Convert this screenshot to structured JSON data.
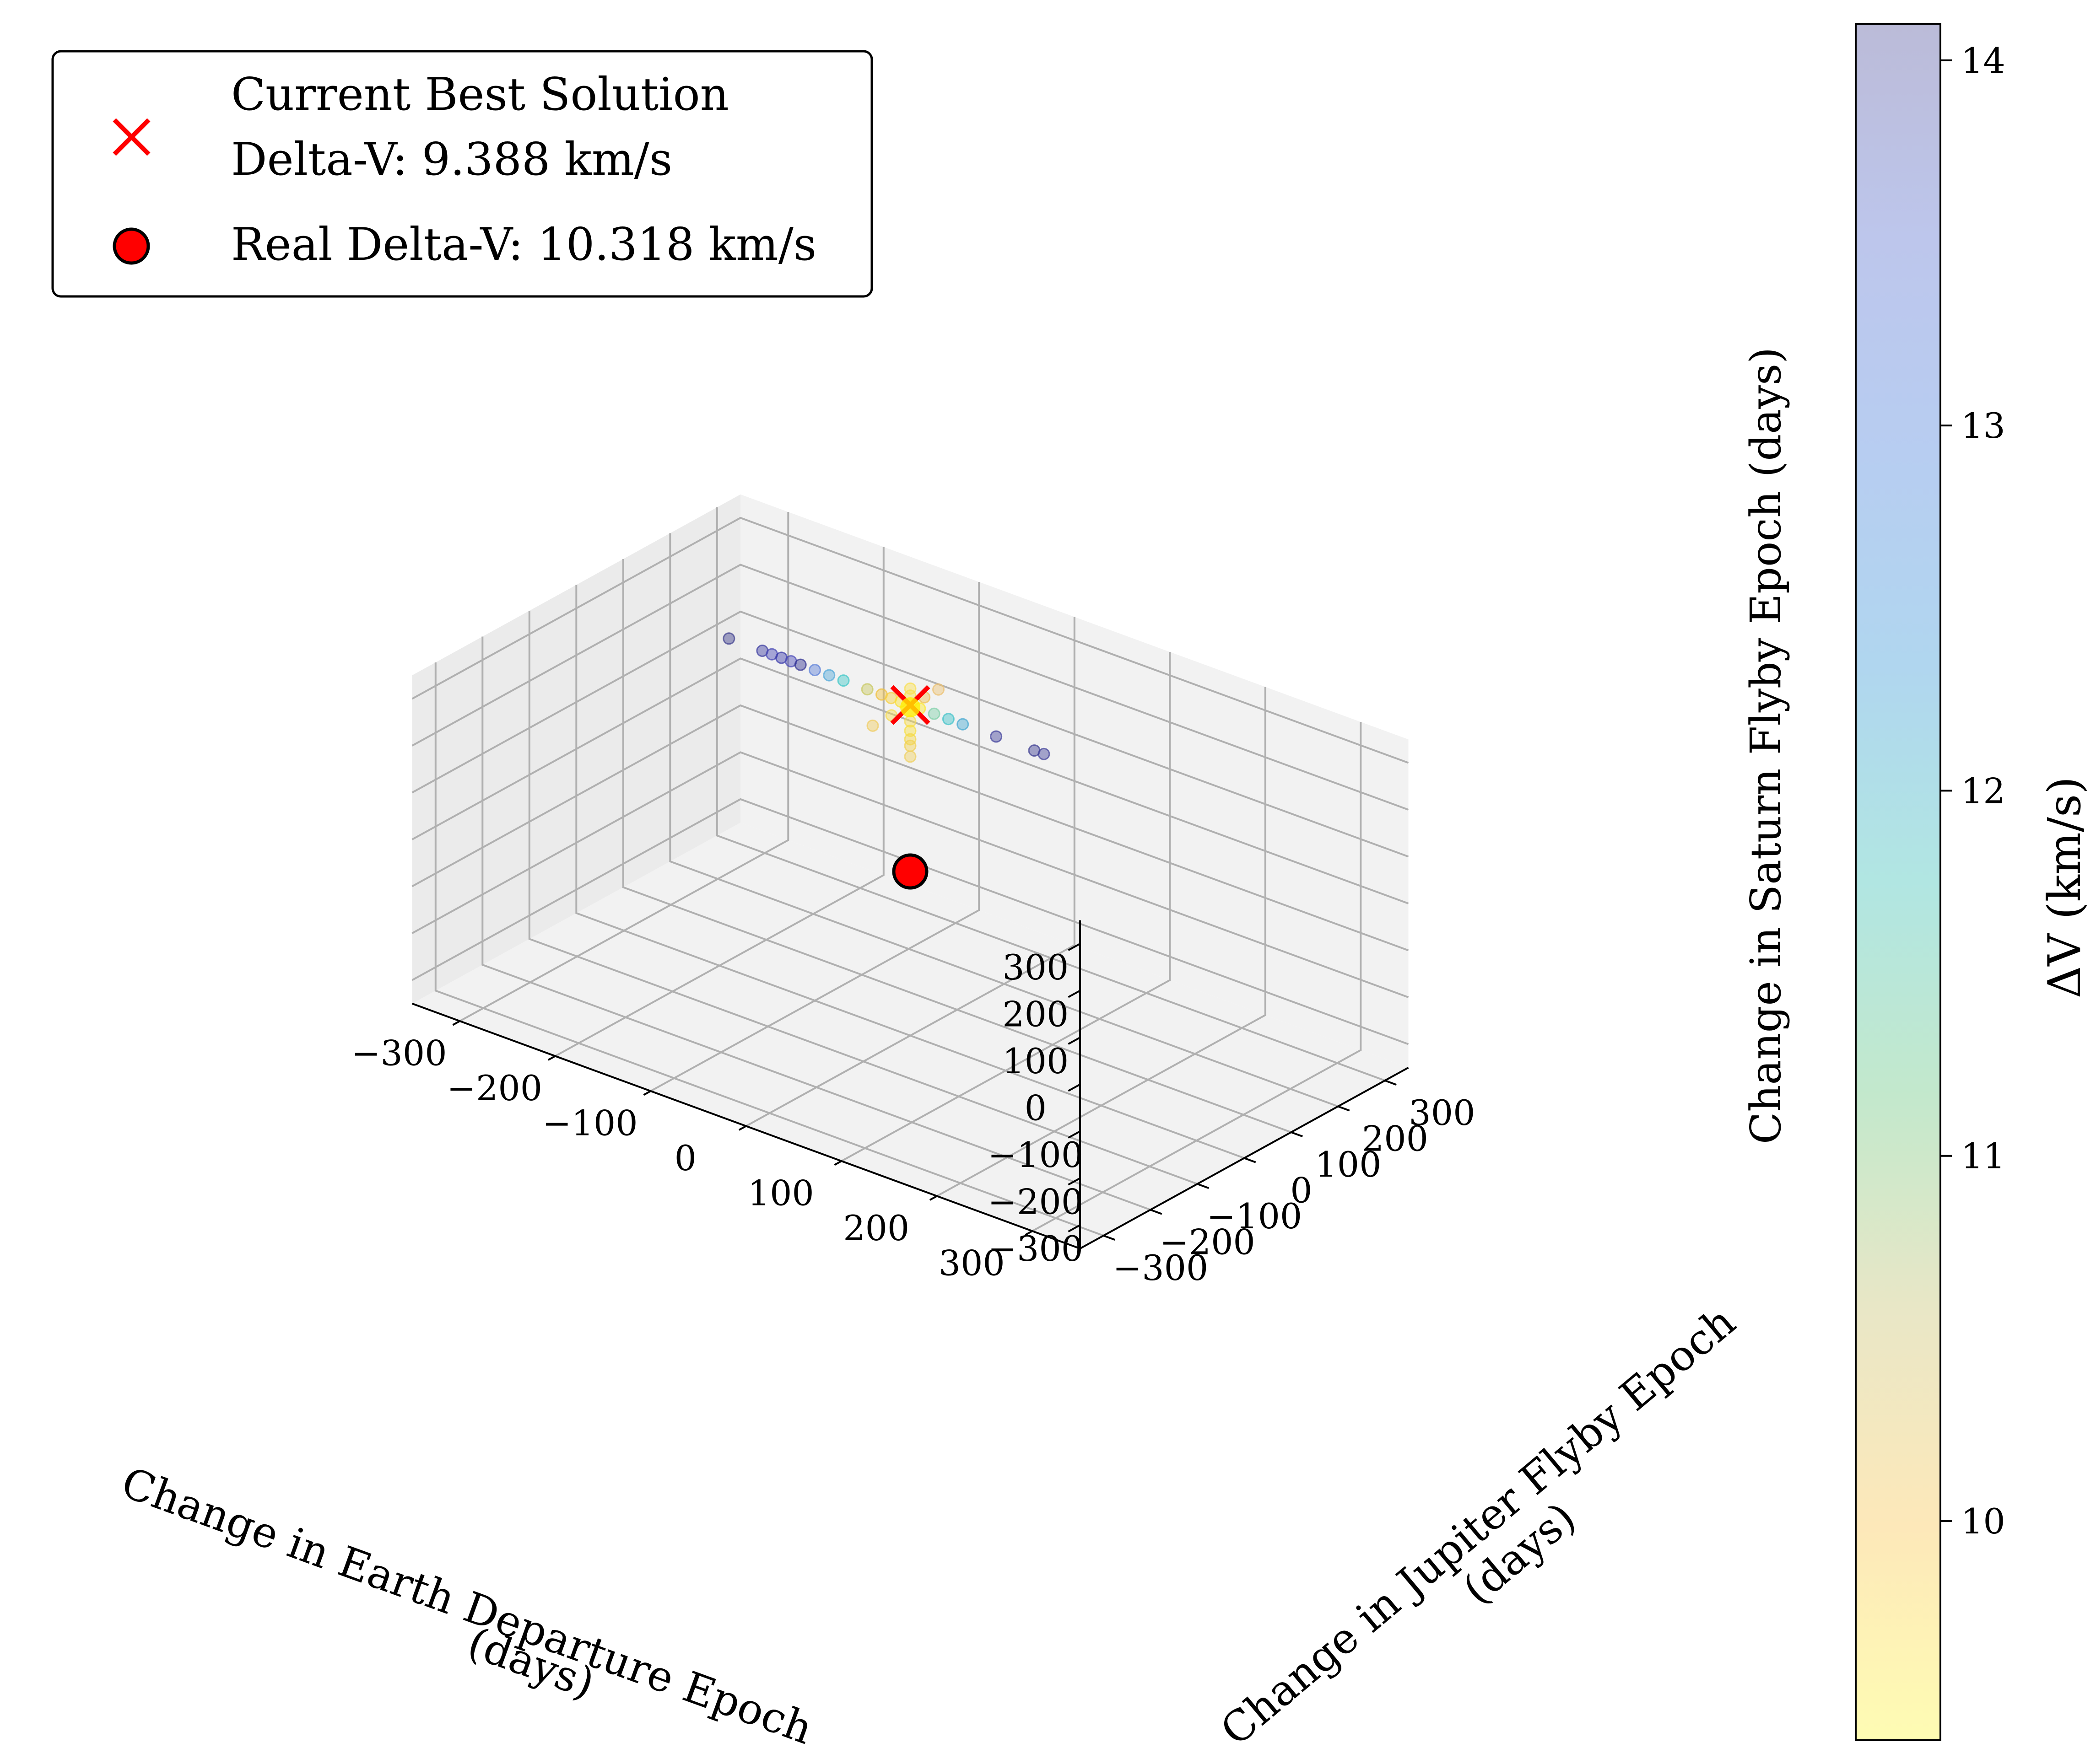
{
  "chart_data": {
    "type": "scatter",
    "projection": "3d",
    "title": "",
    "xlabel": "Change in Earth Departure Epoch\n(days)",
    "ylabel": "Change in Jupiter Flyby Epoch\n(days)",
    "zlabel": "Change in Saturn Flyby Epoch (days)",
    "xlim": [
      -350,
      350
    ],
    "ylim": [
      -350,
      350
    ],
    "zlim": [
      -350,
      350
    ],
    "xticks": [
      -300,
      -200,
      -100,
      0,
      100,
      200,
      300
    ],
    "yticks": [
      -300,
      -200,
      -100,
      0,
      100,
      200,
      300
    ],
    "zticks": [
      -300,
      -200,
      -100,
      0,
      100,
      200,
      300
    ],
    "tick_labels": [
      "−300",
      "−200",
      "−100",
      "0",
      "100",
      "200",
      "300"
    ],
    "grid": true,
    "legend_position": "top-left",
    "legend": [
      {
        "marker": "x",
        "color": "#ff0000",
        "label_lines": [
          "Current Best Solution",
          "Delta-V: 9.388 km/s"
        ]
      },
      {
        "marker": "o",
        "color": "#ff0000",
        "edge": "#000000",
        "label_lines": [
          "Real Delta-V: 10.318 km/s"
        ]
      }
    ],
    "colorbar": {
      "label": "ΔV (km/s)",
      "min": 9.4,
      "max": 14.1,
      "ticks": [
        10,
        11,
        12,
        13,
        14
      ],
      "tick_labels": [
        "10",
        "11",
        "12",
        "13",
        "14"
      ],
      "colormap_stops": [
        "#fefcb3",
        "#fde8b9",
        "#e9e7c6",
        "#c3e8cc",
        "#b1e6e2",
        "#b0d6ef",
        "#b7cdf1",
        "#bdc6ec",
        "#bbbbd8"
      ]
    },
    "best_solution": {
      "x": 0,
      "y": 0,
      "z": 355,
      "delta_v": 9.388
    },
    "real_solution": {
      "x": 0,
      "y": 0,
      "z": 0,
      "delta_v": 10.318
    },
    "points": [
      {
        "x": -190,
        "y": 0,
        "z": 355,
        "dv": 14.0,
        "color": "#3b3b8c"
      },
      {
        "x": -155,
        "y": 0,
        "z": 355,
        "dv": 13.9,
        "color": "#3a3aa0"
      },
      {
        "x": -145,
        "y": 0,
        "z": 355,
        "dv": 13.8,
        "color": "#4646b4"
      },
      {
        "x": -135,
        "y": 0,
        "z": 355,
        "dv": 13.7,
        "color": "#3838a8"
      },
      {
        "x": -125,
        "y": 0,
        "z": 355,
        "dv": 13.6,
        "color": "#4a4ab8"
      },
      {
        "x": -115,
        "y": 0,
        "z": 355,
        "dv": 13.5,
        "color": "#2f2f90"
      },
      {
        "x": -100,
        "y": 0,
        "z": 355,
        "dv": 13.2,
        "color": "#5a7fd8"
      },
      {
        "x": -85,
        "y": 0,
        "z": 355,
        "dv": 12.6,
        "color": "#4fa7d8"
      },
      {
        "x": -70,
        "y": 0,
        "z": 355,
        "dv": 12.1,
        "color": "#40c8c8"
      },
      {
        "x": -45,
        "y": 0,
        "z": 355,
        "dv": 11.0,
        "color": "#c8c860"
      },
      {
        "x": -30,
        "y": 0,
        "z": 355,
        "dv": 10.3,
        "color": "#f0c040"
      },
      {
        "x": -20,
        "y": 0,
        "z": 355,
        "dv": 10.0,
        "color": "#f6d040"
      },
      {
        "x": -10,
        "y": 0,
        "z": 355,
        "dv": 9.7,
        "color": "#fbe030"
      },
      {
        "x": 10,
        "y": 0,
        "z": 355,
        "dv": 9.6,
        "color": "#fde82a"
      },
      {
        "x": 25,
        "y": 0,
        "z": 355,
        "dv": 11.7,
        "color": "#7fd0a8"
      },
      {
        "x": 40,
        "y": 0,
        "z": 355,
        "dv": 12.1,
        "color": "#3cc0c8"
      },
      {
        "x": 55,
        "y": 0,
        "z": 355,
        "dv": 12.3,
        "color": "#45a8d0"
      },
      {
        "x": 90,
        "y": 0,
        "z": 355,
        "dv": 13.8,
        "color": "#3d3d9a"
      },
      {
        "x": 130,
        "y": 0,
        "z": 355,
        "dv": 14.0,
        "color": "#3a3a90"
      },
      {
        "x": 140,
        "y": 0,
        "z": 355,
        "dv": 13.9,
        "color": "#404098"
      },
      {
        "x": 0,
        "y": 0,
        "z": 320,
        "dv": 9.9,
        "color": "#f6dc50"
      },
      {
        "x": 0,
        "y": 0,
        "z": 300,
        "dv": 9.8,
        "color": "#f8e040"
      },
      {
        "x": 0,
        "y": 0,
        "z": 282,
        "dv": 9.9,
        "color": "#f4d848"
      },
      {
        "x": 0,
        "y": 0,
        "z": 268,
        "dv": 10.0,
        "color": "#f2d050"
      },
      {
        "x": 0,
        "y": 0,
        "z": 245,
        "dv": 10.1,
        "color": "#f0d060"
      },
      {
        "x": 0,
        "y": 0,
        "z": 375,
        "dv": 9.7,
        "color": "#f8e040"
      },
      {
        "x": 0,
        "y": 0,
        "z": 390,
        "dv": 9.8,
        "color": "#fae050"
      },
      {
        "x": 0,
        "y": -40,
        "z": 355,
        "dv": 9.9,
        "color": "#f6dc50"
      },
      {
        "x": 0,
        "y": -80,
        "z": 355,
        "dv": 10.2,
        "color": "#f0cc60"
      },
      {
        "x": 0,
        "y": 30,
        "z": 355,
        "dv": 10.1,
        "color": "#f0c050"
      },
      {
        "x": 0,
        "y": 60,
        "z": 355,
        "dv": 10.4,
        "color": "#ecc070"
      }
    ]
  }
}
